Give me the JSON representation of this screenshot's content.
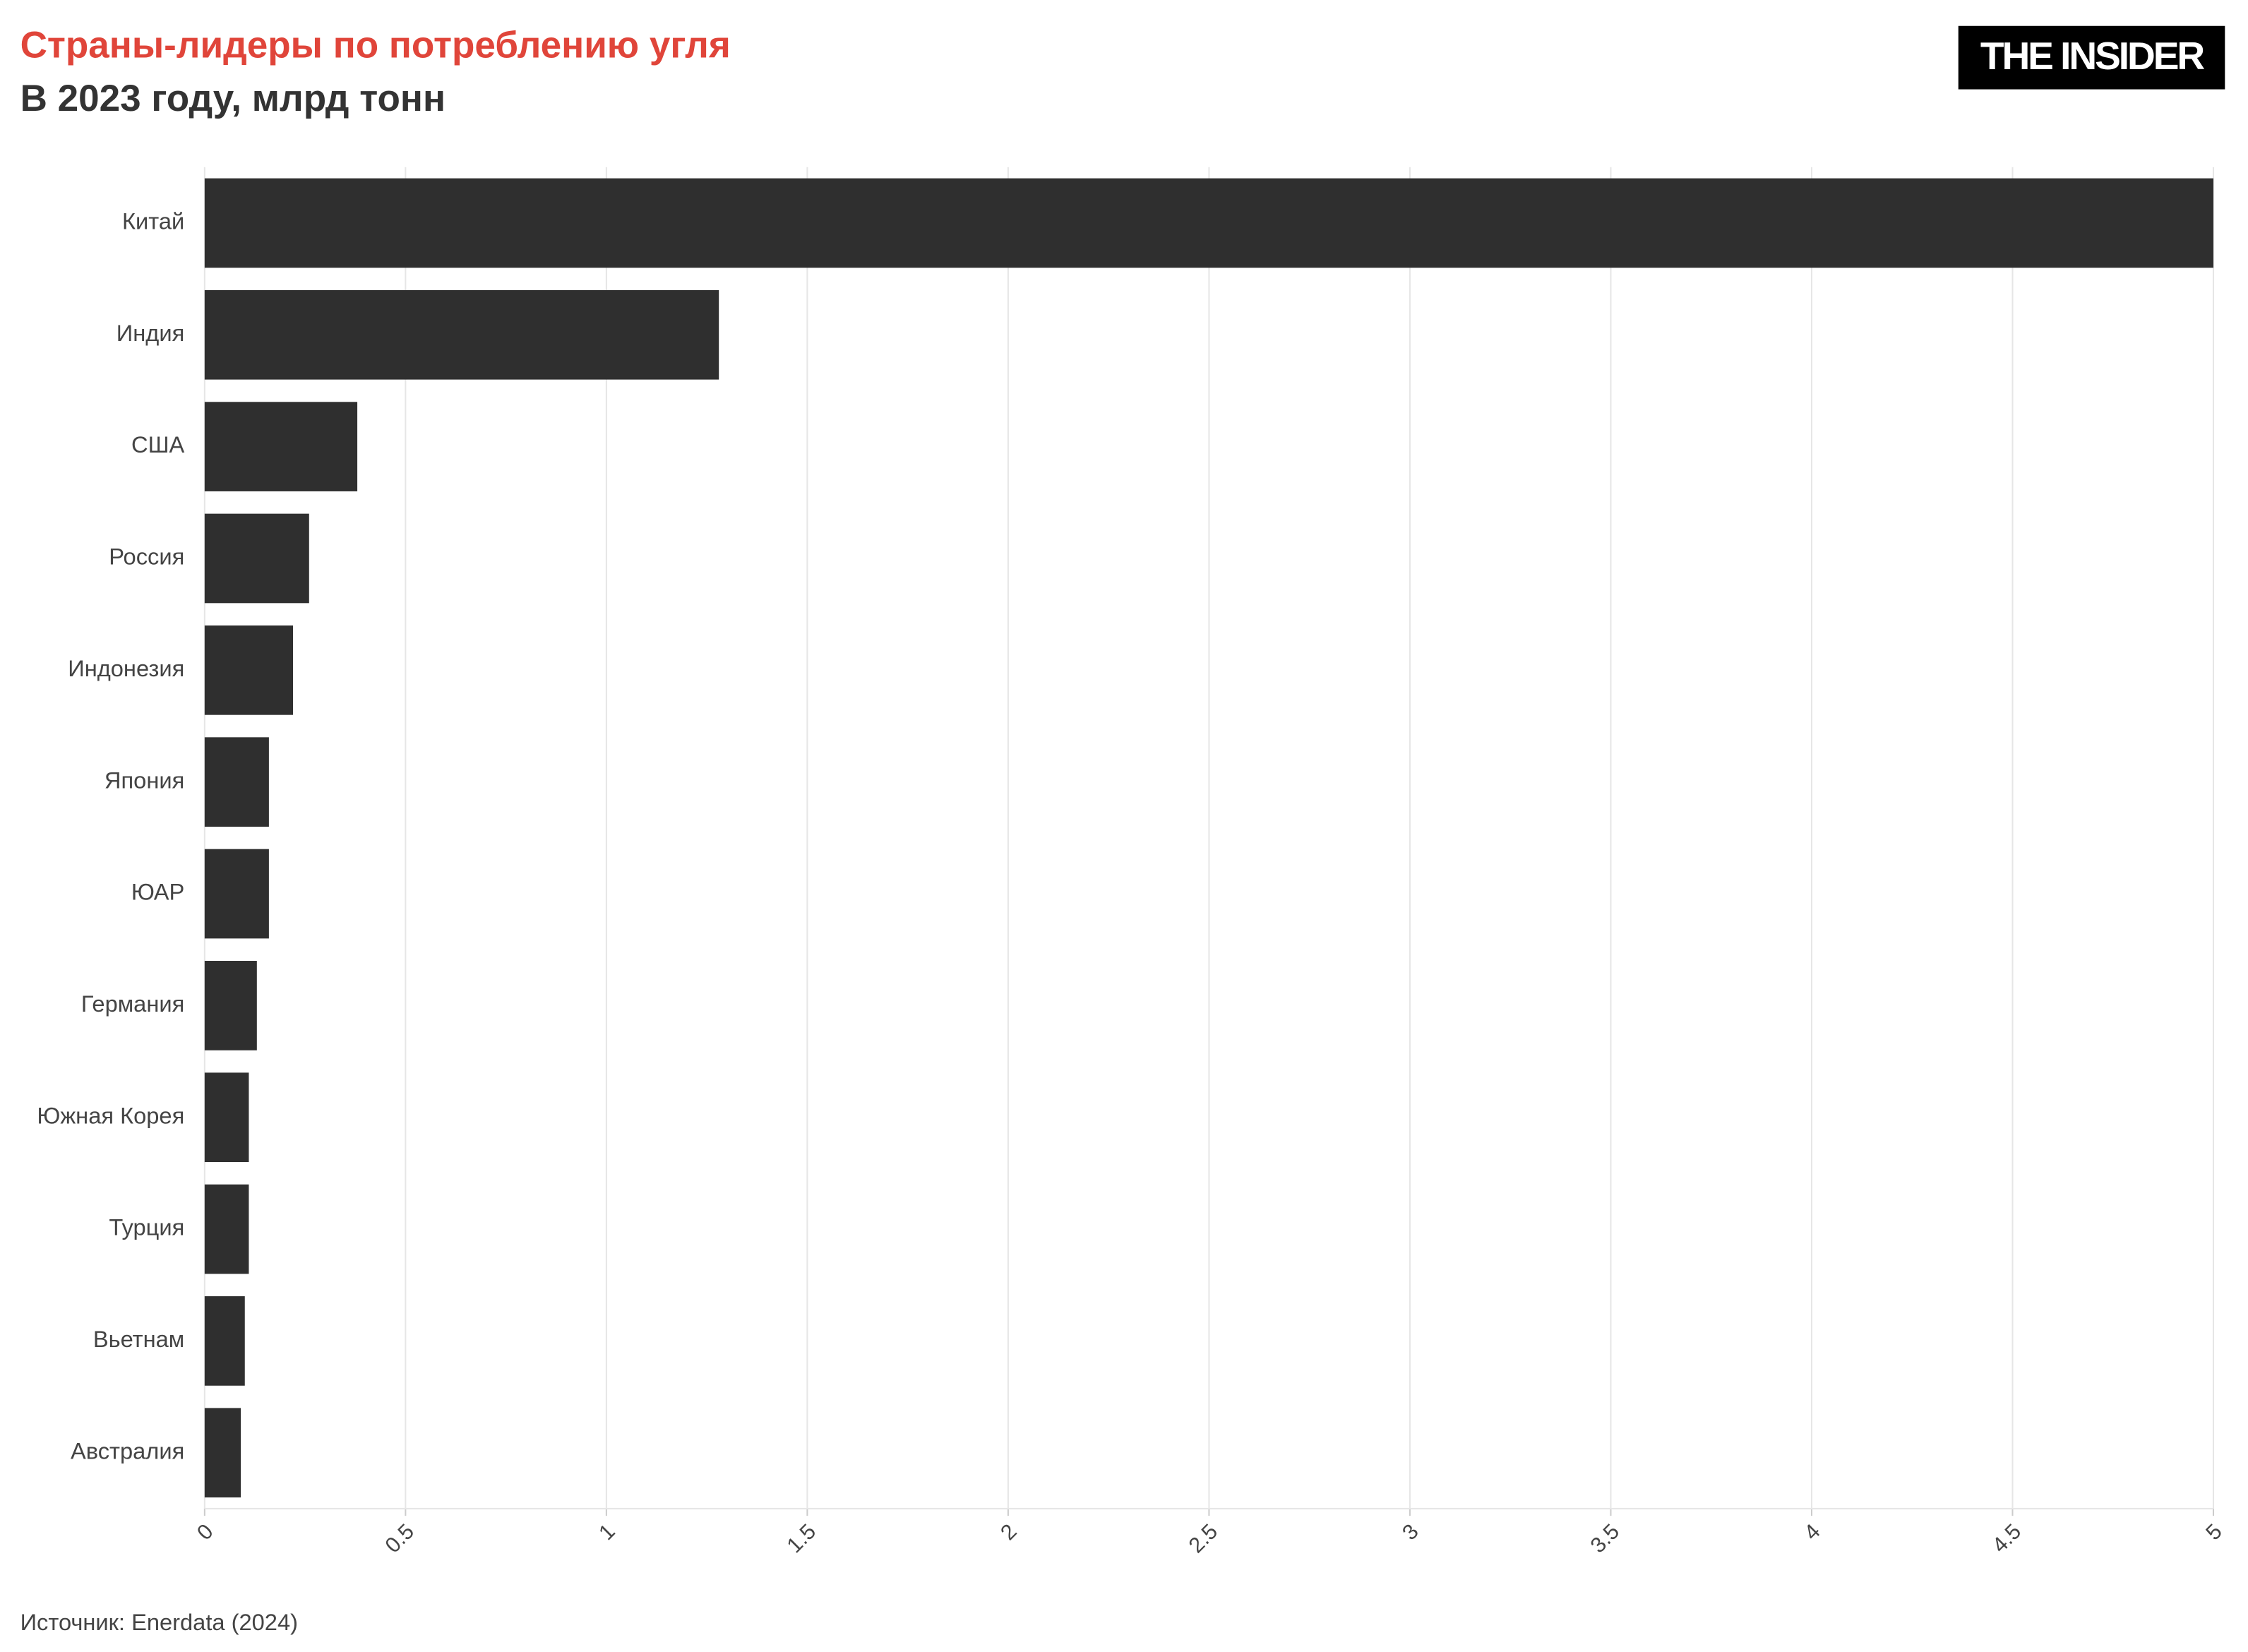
{
  "chart_data": {
    "type": "bar",
    "orientation": "horizontal",
    "title": "Страны-лидеры по потреблению угля",
    "subtitle": "В 2023 году, млрд тонн",
    "logo": "THE INSIDER",
    "source": "Источник: Enerdata (2024)",
    "categories": [
      "Китай",
      "Индия",
      "США",
      "Россия",
      "Индонезия",
      "Япония",
      "ЮАР",
      "Германия",
      "Южная Корея",
      "Турция",
      "Вьетнам",
      "Австралия"
    ],
    "values": [
      5,
      1.28,
      0.38,
      0.26,
      0.22,
      0.16,
      0.16,
      0.13,
      0.11,
      0.11,
      0.1,
      0.09
    ],
    "color": "#2f2f2f",
    "xlim": [
      0,
      5
    ],
    "xticks": [
      0,
      0.5,
      1,
      1.5,
      2,
      2.5,
      3,
      3.5,
      4,
      4.5,
      5
    ],
    "grid": true
  }
}
